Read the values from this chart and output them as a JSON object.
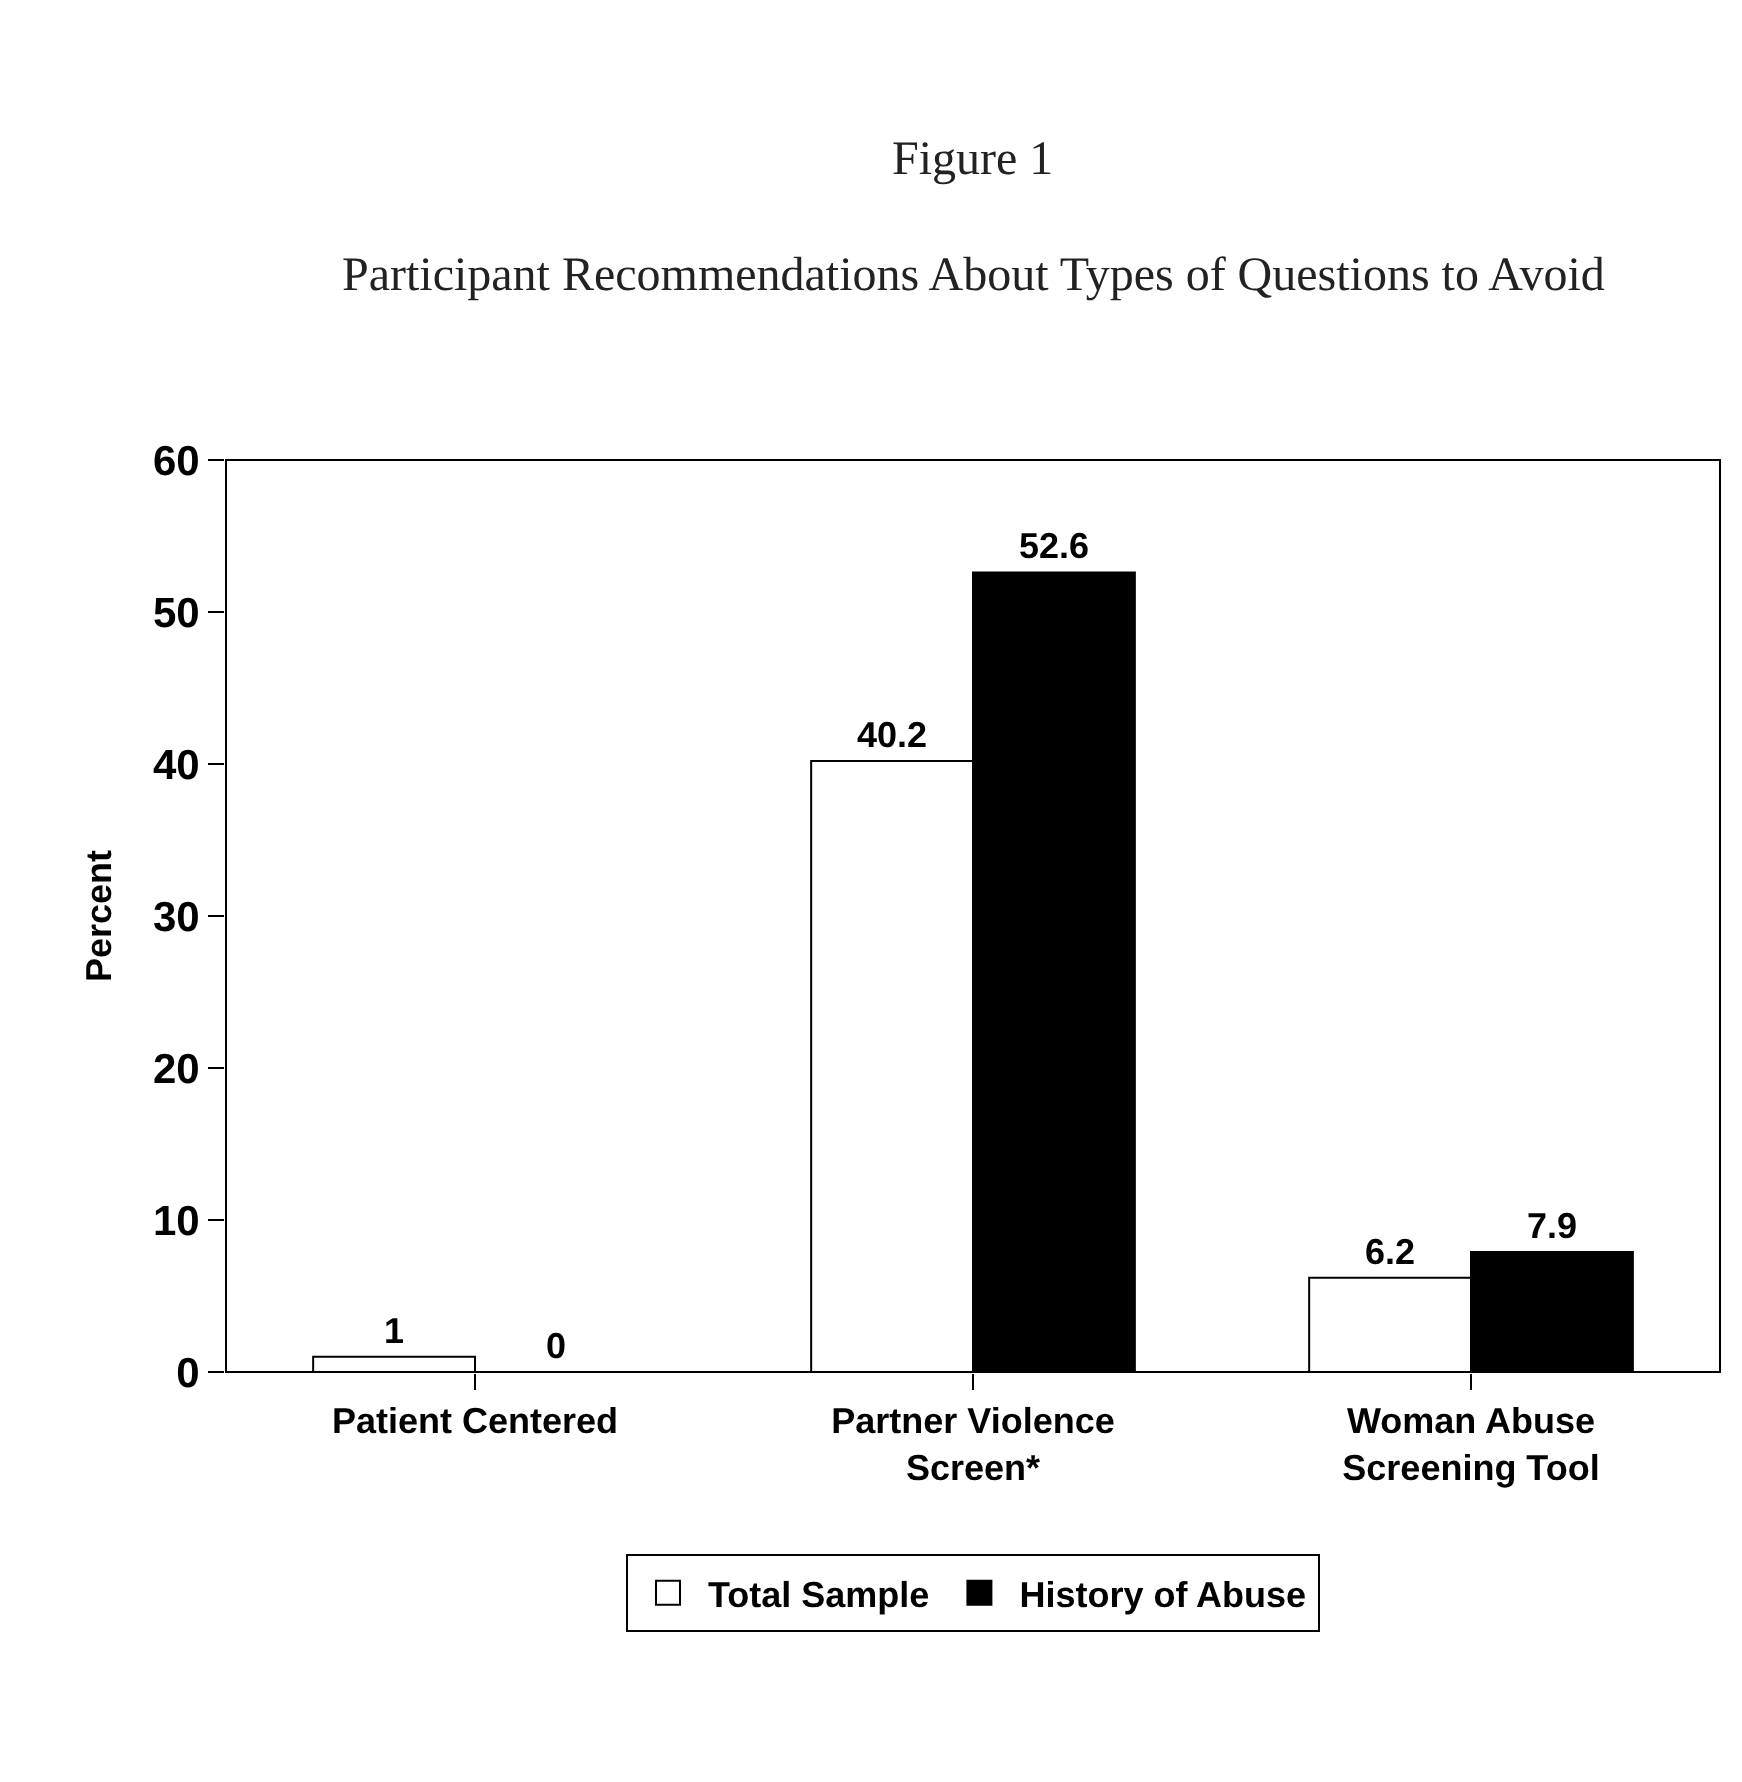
{
  "chart_data": {
    "type": "bar",
    "title": "Figure 1",
    "subtitle": "Participant Recommendations About Types of Questions to Avoid",
    "ylabel": "Percent",
    "categories": [
      "Patient Centered",
      "Partner Violence Screen*",
      "Woman Abuse Screening Tool"
    ],
    "series": [
      {
        "name": "Total Sample",
        "color": "#ffffff",
        "values": [
          1,
          40.2,
          6.2
        ]
      },
      {
        "name": "History of Abuse",
        "color": "#000000",
        "values": [
          0,
          52.6,
          7.9
        ]
      }
    ],
    "ylim": [
      0,
      60
    ],
    "yticks": [
      0,
      10,
      20,
      30,
      40,
      50,
      60
    ],
    "grid": false,
    "legend": "bottom",
    "data_labels": true
  }
}
